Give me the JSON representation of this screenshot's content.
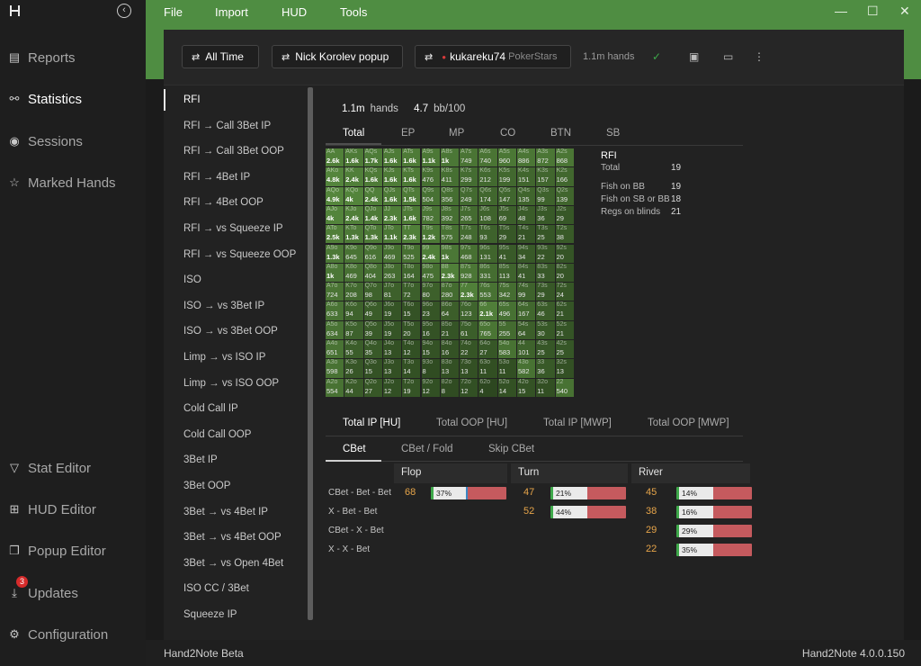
{
  "sidebar": {
    "items": [
      {
        "label": "Reports",
        "icon": "report-icon"
      },
      {
        "label": "Statistics",
        "icon": "share-nodes-icon"
      },
      {
        "label": "Sessions",
        "icon": "broadcast-icon"
      },
      {
        "label": "Marked Hands",
        "icon": "star-list-icon"
      },
      {
        "label": "Stat Editor",
        "icon": "filter-icon"
      },
      {
        "label": "HUD Editor",
        "icon": "hud-layout-icon"
      },
      {
        "label": "Popup Editor",
        "icon": "popup-icon"
      },
      {
        "label": "Updates",
        "icon": "download-icon"
      },
      {
        "label": "Configuration",
        "icon": "gear-icon"
      }
    ],
    "updates_badge": "3"
  },
  "menu": {
    "items": [
      "File",
      "Import",
      "HUD",
      "Tools"
    ]
  },
  "toolbar": {
    "time_filter": "All Time",
    "popup": "Nick Korolev popup",
    "player": "kukareku74",
    "site": "PokerStars",
    "hands": "1.1m hands"
  },
  "stat_list": [
    "RFI",
    "RFI → Call 3Bet IP",
    "RFI → Call 3Bet OOP",
    "RFI → 4Bet IP",
    "RFI → 4Bet OOP",
    "RFI → vs Squeeze IP",
    "RFI → vs Squeeze OOP",
    "ISO",
    "ISO → vs 3Bet IP",
    "ISO → vs 3Bet OOP",
    "Limp → vs ISO IP",
    "Limp → vs ISO OOP",
    "Cold Call IP",
    "Cold Call OOP",
    "3Bet IP",
    "3Bet OOP",
    "3Bet → vs 4Bet IP",
    "3Bet → vs 4Bet OOP",
    "3Bet → vs Open 4Bet",
    "ISO CC / 3Bet",
    "Squeeze IP"
  ],
  "summary": {
    "hands_value": "1.1m",
    "hands_label": "hands",
    "bb_value": "4.7",
    "bb_label": "bb/100"
  },
  "position_tabs": [
    "Total",
    "EP",
    "MP",
    "CO",
    "BTN",
    "SB"
  ],
  "grid": {
    "ranks": [
      "A",
      "K",
      "Q",
      "J",
      "T",
      "9",
      "8",
      "7",
      "6",
      "5",
      "4",
      "3",
      "2"
    ],
    "rows": [
      [
        "2.6k",
        "1.6k",
        "1.7k",
        "1.6k",
        "1.6k",
        "1.1k",
        "1k",
        "749",
        "740",
        "960",
        "886",
        "872",
        "868"
      ],
      [
        "4.8k",
        "2.4k",
        "1.6k",
        "1.6k",
        "1.6k",
        "476",
        "411",
        "299",
        "212",
        "199",
        "151",
        "157",
        "166"
      ],
      [
        "4.9k",
        "4k",
        "2.4k",
        "1.6k",
        "1.5k",
        "504",
        "356",
        "249",
        "174",
        "147",
        "135",
        "99",
        "139"
      ],
      [
        "4k",
        "2.4k",
        "1.4k",
        "2.3k",
        "1.6k",
        "782",
        "392",
        "265",
        "108",
        "69",
        "48",
        "36",
        "29"
      ],
      [
        "2.5k",
        "1.3k",
        "1.3k",
        "1.1k",
        "2.3k",
        "1.2k",
        "575",
        "248",
        "93",
        "29",
        "21",
        "25",
        "38"
      ],
      [
        "1.3k",
        "645",
        "616",
        "469",
        "525",
        "2.4k",
        "1k",
        "468",
        "131",
        "41",
        "34",
        "22",
        "20"
      ],
      [
        "1k",
        "469",
        "404",
        "263",
        "164",
        "475",
        "2.3k",
        "928",
        "331",
        "113",
        "41",
        "33",
        "20"
      ],
      [
        "724",
        "208",
        "98",
        "81",
        "72",
        "80",
        "280",
        "2.3k",
        "553",
        "342",
        "99",
        "29",
        "24"
      ],
      [
        "633",
        "94",
        "49",
        "19",
        "15",
        "23",
        "64",
        "123",
        "2.1k",
        "496",
        "167",
        "46",
        "21"
      ],
      [
        "634",
        "87",
        "39",
        "19",
        "20",
        "16",
        "21",
        "61",
        "765",
        "255",
        "64",
        "30",
        "21"
      ],
      [
        "651",
        "55",
        "35",
        "13",
        "12",
        "15",
        "16",
        "22",
        "27",
        "583",
        "101",
        "25",
        "25"
      ],
      [
        "598",
        "26",
        "15",
        "13",
        "14",
        "8",
        "13",
        "13",
        "11",
        "11",
        "582",
        "36",
        "13"
      ],
      [
        "554",
        "44",
        "27",
        "12",
        "19",
        "12",
        "8",
        "12",
        "4",
        "14",
        "15",
        "11",
        "540"
      ]
    ]
  },
  "rfi_side": {
    "title": "RFI",
    "rows": [
      {
        "label": "Total",
        "value": "19"
      },
      {
        "label": "Fish on BB",
        "value": "19"
      },
      {
        "label": "Fish on SB or BB",
        "value": "18"
      },
      {
        "label": "Regs on blinds",
        "value": "21"
      }
    ]
  },
  "postflop_tabs": [
    "Total IP [HU]",
    "Total OOP [HU]",
    "Total IP [MWP]",
    "Total OOP [MWP]"
  ],
  "action_tabs": [
    "CBet",
    "CBet / Fold",
    "Skip CBet"
  ],
  "streets": [
    "Flop",
    "Turn",
    "River"
  ],
  "lines": [
    {
      "label": "CBet - Bet - Bet",
      "street": 0,
      "count": "68",
      "weak_label": "37% weak",
      "weak": 37
    },
    {
      "label": "X - Bet - Bet",
      "street": 1,
      "count": "47",
      "weak_label": "21% weak",
      "weak": 21
    },
    {
      "label": "CBet - X - Bet",
      "street": 1,
      "count": "52",
      "weak_label": "44% weak",
      "weak": 44
    },
    {
      "label": "X - X - Bet",
      "street": 2,
      "count": "45",
      "weak_label": "14% weak",
      "weak": 14
    },
    {
      "street": 2,
      "count": "38",
      "weak_label": "16% weak",
      "weak": 16
    },
    {
      "street": 2,
      "count": "29",
      "weak_label": "29% weak",
      "weak": 29
    },
    {
      "street": 2,
      "count": "22",
      "weak_label": "35% weak",
      "weak": 35
    }
  ],
  "status": {
    "left": "Hand2Note Beta",
    "right": "Hand2Note 4.0.0.150"
  },
  "colors": {
    "accent": "#4f8d42",
    "count": "#e7a54a",
    "bar_red": "#c55a5e",
    "bar_green": "#3ea84a"
  }
}
